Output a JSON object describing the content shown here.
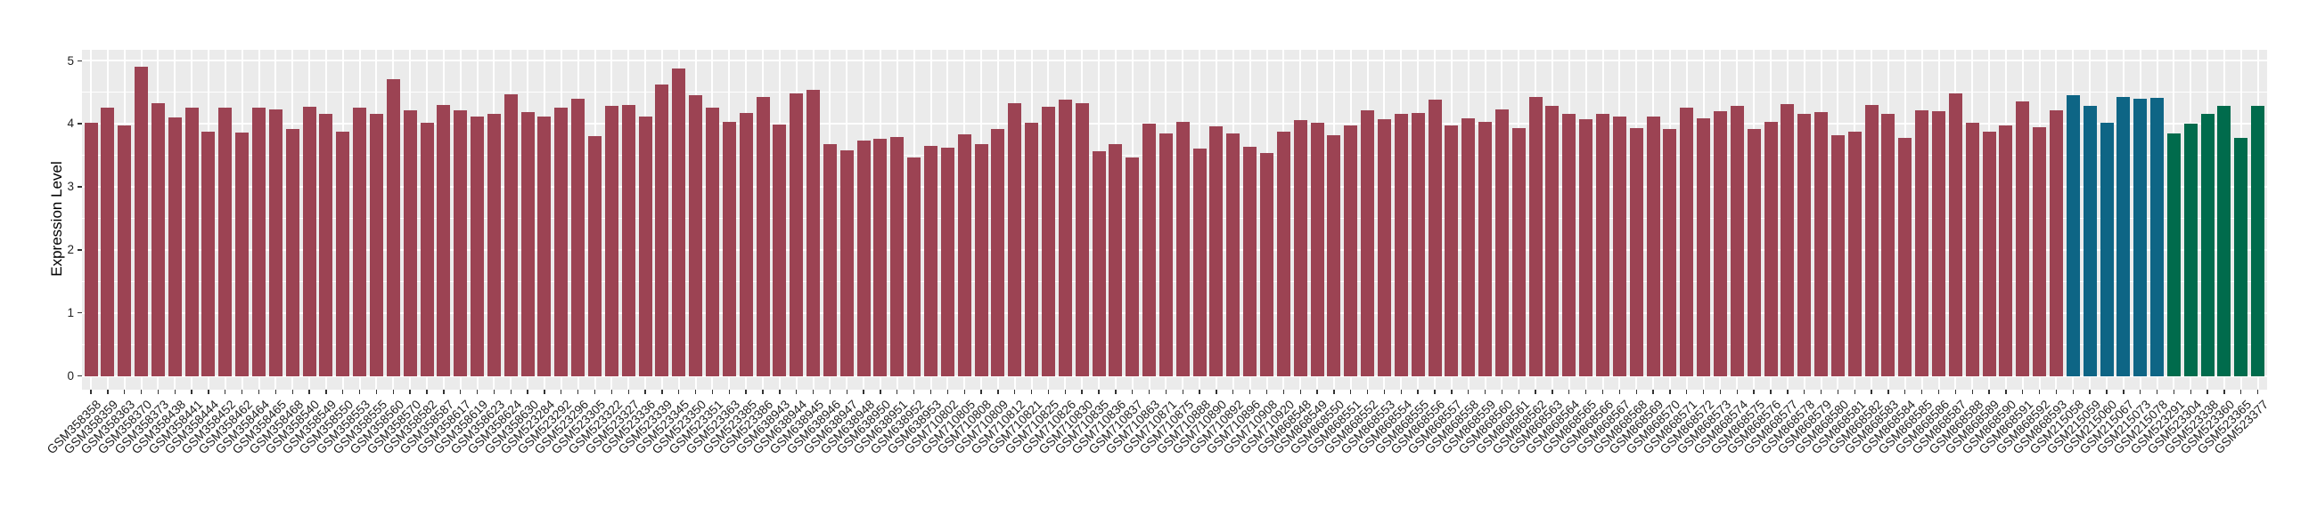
{
  "chart_data": {
    "type": "bar",
    "title": "",
    "xlabel": "",
    "ylabel": "Expression Level",
    "ylim": [
      0,
      5
    ],
    "yticks": [
      0,
      1,
      2,
      3,
      4,
      5
    ],
    "minor_gridlines": [
      0.5,
      1.5,
      2.5,
      3.5,
      4.5
    ],
    "grid": "white major+minor horizontal lines and white vertical line per category on gray panel",
    "legend": "none",
    "panel_bg": "#ebebeb",
    "grid_color": "#ffffff",
    "x_tick_label_angle": 45,
    "group_colors": {
      "maroon": "#9c4353",
      "blue": "#0e6585",
      "green": "#006b4c"
    },
    "bar_groups": [
      {
        "name": "group-1",
        "color_key": "maroon",
        "start": 0,
        "end": 117
      },
      {
        "name": "group-2",
        "color_key": "blue",
        "start": 118,
        "end": 123
      },
      {
        "name": "group-3",
        "color_key": "green",
        "start": 124,
        "end": 129
      }
    ],
    "categories": [
      "GSM358358",
      "GSM358359",
      "GSM358363",
      "GSM358370",
      "GSM358373",
      "GSM358438",
      "GSM358441",
      "GSM358444",
      "GSM358452",
      "GSM358462",
      "GSM358464",
      "GSM358465",
      "GSM358468",
      "GSM358540",
      "GSM358549",
      "GSM358550",
      "GSM358553",
      "GSM358555",
      "GSM358560",
      "GSM358570",
      "GSM358582",
      "GSM358587",
      "GSM358617",
      "GSM358619",
      "GSM358623",
      "GSM358624",
      "GSM358630",
      "GSM523284",
      "GSM523292",
      "GSM523296",
      "GSM523305",
      "GSM523322",
      "GSM523327",
      "GSM523336",
      "GSM523339",
      "GSM523345",
      "GSM523350",
      "GSM523351",
      "GSM523363",
      "GSM523385",
      "GSM523386",
      "GSM638943",
      "GSM638944",
      "GSM638945",
      "GSM638946",
      "GSM638947",
      "GSM638948",
      "GSM638950",
      "GSM638951",
      "GSM638952",
      "GSM638953",
      "GSM710802",
      "GSM710805",
      "GSM710808",
      "GSM710809",
      "GSM710812",
      "GSM710821",
      "GSM710825",
      "GSM710826",
      "GSM710830",
      "GSM710835",
      "GSM710836",
      "GSM710837",
      "GSM710863",
      "GSM710871",
      "GSM710875",
      "GSM710888",
      "GSM710890",
      "GSM710892",
      "GSM710896",
      "GSM710908",
      "GSM710920",
      "GSM868548",
      "GSM868549",
      "GSM868550",
      "GSM868551",
      "GSM868552",
      "GSM868553",
      "GSM868554",
      "GSM868555",
      "GSM868556",
      "GSM868557",
      "GSM868558",
      "GSM868559",
      "GSM868560",
      "GSM868561",
      "GSM868562",
      "GSM868563",
      "GSM868564",
      "GSM868565",
      "GSM868566",
      "GSM868567",
      "GSM868568",
      "GSM868569",
      "GSM868570",
      "GSM868571",
      "GSM868572",
      "GSM868573",
      "GSM868574",
      "GSM868575",
      "GSM868576",
      "GSM868577",
      "GSM868578",
      "GSM868579",
      "GSM868580",
      "GSM868581",
      "GSM868582",
      "GSM868583",
      "GSM868584",
      "GSM868585",
      "GSM868586",
      "GSM868587",
      "GSM868588",
      "GSM868589",
      "GSM868590",
      "GSM868591",
      "GSM868592",
      "GSM868593",
      "GSM215058",
      "GSM215059",
      "GSM215060",
      "GSM215067",
      "GSM215073",
      "GSM215078",
      "GSM523291",
      "GSM523304",
      "GSM523338",
      "GSM523360",
      "GSM523365",
      "GSM523377"
    ],
    "values": [
      4.02,
      4.26,
      3.97,
      4.9,
      4.32,
      4.1,
      4.26,
      3.88,
      4.26,
      3.86,
      4.26,
      4.23,
      3.92,
      4.27,
      4.16,
      3.88,
      4.25,
      4.15,
      4.7,
      4.21,
      4.01,
      4.3,
      4.21,
      4.12,
      4.16,
      4.47,
      4.18,
      4.11,
      4.25,
      4.4,
      3.81,
      4.29,
      4.3,
      4.12,
      4.62,
      4.88,
      4.45,
      4.26,
      4.03,
      4.17,
      4.42,
      3.99,
      4.48,
      4.54,
      3.68,
      3.58,
      3.73,
      3.76,
      3.79,
      3.46,
      3.65,
      3.62,
      3.83,
      3.67,
      3.91,
      4.32,
      4.01,
      4.27,
      4.38,
      4.33,
      3.56,
      3.67,
      3.46,
      4.0,
      3.84,
      4.03,
      3.61,
      3.96,
      3.85,
      3.63,
      3.53,
      3.88,
      4.06,
      4.01,
      3.82,
      3.97,
      4.21,
      4.07,
      4.15,
      4.17,
      4.38,
      3.98,
      4.08,
      4.03,
      4.23,
      3.93,
      4.42,
      4.28,
      4.16,
      4.07,
      4.16,
      4.12,
      3.93,
      4.11,
      3.91,
      4.26,
      4.09,
      4.2,
      4.29,
      3.91,
      4.03,
      4.31,
      4.16,
      4.18,
      3.82,
      3.88,
      4.3,
      4.15,
      3.78,
      4.22,
      4.2,
      4.48,
      4.02,
      3.88,
      3.98,
      4.36,
      3.94,
      4.22,
      4.45,
      4.29,
      4.02,
      4.42,
      4.39,
      4.41,
      3.85,
      4.0,
      4.16,
      4.29,
      3.78,
      4.28
    ]
  }
}
